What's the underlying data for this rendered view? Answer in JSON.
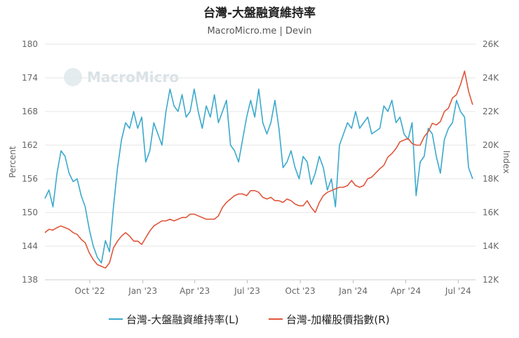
{
  "chart_data": {
    "type": "line",
    "title": "台灣-大盤融資維持率",
    "subtitle": "MacroMicro.me | Devin",
    "watermark": "MacroMicro",
    "ylabel_left": "Percent",
    "ylabel_right": "Index",
    "ylim_left": [
      138,
      180
    ],
    "ylim_right": [
      12000,
      26000
    ],
    "yticks_left": [
      138,
      144,
      150,
      156,
      162,
      168,
      174,
      180
    ],
    "yticks_right_labels": [
      "12K",
      "14K",
      "16K",
      "18K",
      "20K",
      "22K",
      "24K",
      "26K"
    ],
    "yticks_right_values": [
      12000,
      14000,
      16000,
      18000,
      20000,
      22000,
      24000,
      26000
    ],
    "x_tick_labels": [
      "Oct '22",
      "Jan '23",
      "Apr '23",
      "Jul '23",
      "Oct '23",
      "Jan '24",
      "Apr '24",
      "Jul '24"
    ],
    "x_tick_dates": [
      "2022-10-01",
      "2023-01-01",
      "2023-04-01",
      "2023-07-01",
      "2023-10-01",
      "2024-01-01",
      "2024-04-01",
      "2024-07-01"
    ],
    "x_range": [
      "2022-07-15",
      "2024-07-31"
    ],
    "grid": "horizontal",
    "legend_position": "bottom",
    "series": [
      {
        "name": "台灣-大盤融資維持率(L)",
        "axis": "left",
        "color": "#3ba9cc",
        "x": [
          "2022-07-15",
          "2022-07-22",
          "2022-07-29",
          "2022-08-05",
          "2022-08-12",
          "2022-08-19",
          "2022-08-26",
          "2022-09-02",
          "2022-09-09",
          "2022-09-16",
          "2022-09-23",
          "2022-09-30",
          "2022-10-07",
          "2022-10-14",
          "2022-10-21",
          "2022-10-28",
          "2022-11-04",
          "2022-11-11",
          "2022-11-18",
          "2022-11-25",
          "2022-12-02",
          "2022-12-09",
          "2022-12-16",
          "2022-12-23",
          "2022-12-30",
          "2023-01-06",
          "2023-01-13",
          "2023-01-20",
          "2023-02-03",
          "2023-02-10",
          "2023-02-17",
          "2023-02-24",
          "2023-03-03",
          "2023-03-10",
          "2023-03-17",
          "2023-03-24",
          "2023-03-31",
          "2023-04-07",
          "2023-04-14",
          "2023-04-21",
          "2023-04-28",
          "2023-05-05",
          "2023-05-12",
          "2023-05-19",
          "2023-05-26",
          "2023-06-02",
          "2023-06-09",
          "2023-06-16",
          "2023-06-23",
          "2023-06-30",
          "2023-07-07",
          "2023-07-14",
          "2023-07-21",
          "2023-07-28",
          "2023-08-04",
          "2023-08-11",
          "2023-08-18",
          "2023-08-25",
          "2023-09-01",
          "2023-09-08",
          "2023-09-15",
          "2023-09-22",
          "2023-09-29",
          "2023-10-06",
          "2023-10-13",
          "2023-10-20",
          "2023-10-27",
          "2023-11-03",
          "2023-11-10",
          "2023-11-17",
          "2023-11-24",
          "2023-12-01",
          "2023-12-08",
          "2023-12-15",
          "2023-12-22",
          "2023-12-29",
          "2024-01-05",
          "2024-01-12",
          "2024-01-19",
          "2024-01-26",
          "2024-02-02",
          "2024-02-16",
          "2024-02-23",
          "2024-03-01",
          "2024-03-08",
          "2024-03-15",
          "2024-03-22",
          "2024-03-29",
          "2024-04-05",
          "2024-04-12",
          "2024-04-19",
          "2024-04-26",
          "2024-05-03",
          "2024-05-10",
          "2024-05-17",
          "2024-05-24",
          "2024-05-31",
          "2024-06-07",
          "2024-06-14",
          "2024-06-21",
          "2024-06-28",
          "2024-07-05",
          "2024-07-12",
          "2024-07-19",
          "2024-07-26"
        ],
        "values": [
          152.5,
          154,
          151,
          157,
          161,
          160,
          157,
          155.5,
          156,
          153,
          151,
          147,
          144,
          142,
          141,
          145,
          143,
          151,
          158,
          163,
          166,
          165,
          168,
          165,
          167,
          159,
          161,
          166,
          162,
          168,
          172,
          169,
          168,
          171,
          167,
          168,
          172,
          168,
          165,
          169,
          167,
          171,
          166,
          168,
          170,
          162,
          161,
          159,
          163,
          167,
          170,
          167,
          172,
          166,
          164,
          166,
          170,
          165,
          158,
          159,
          161,
          158,
          156,
          160,
          159,
          155,
          157,
          160,
          158,
          154,
          156,
          151,
          162,
          164,
          166,
          165,
          168,
          165,
          166,
          167,
          164,
          165,
          169,
          168,
          170,
          166,
          167,
          164,
          163,
          166,
          153,
          159,
          160,
          165,
          164,
          160,
          157,
          163,
          165,
          166,
          170,
          168,
          167,
          158,
          156
        ]
      },
      {
        "name": "台灣-加權股價指數(R)",
        "axis": "right",
        "color": "#e0563b",
        "x": [
          "2022-07-15",
          "2022-07-22",
          "2022-07-29",
          "2022-08-05",
          "2022-08-12",
          "2022-08-19",
          "2022-08-26",
          "2022-09-02",
          "2022-09-09",
          "2022-09-16",
          "2022-09-23",
          "2022-09-30",
          "2022-10-07",
          "2022-10-14",
          "2022-10-21",
          "2022-10-28",
          "2022-11-04",
          "2022-11-11",
          "2022-11-18",
          "2022-11-25",
          "2022-12-02",
          "2022-12-09",
          "2022-12-16",
          "2022-12-23",
          "2022-12-30",
          "2023-01-06",
          "2023-01-13",
          "2023-01-20",
          "2023-02-03",
          "2023-02-10",
          "2023-02-17",
          "2023-02-24",
          "2023-03-03",
          "2023-03-10",
          "2023-03-17",
          "2023-03-24",
          "2023-03-31",
          "2023-04-07",
          "2023-04-14",
          "2023-04-21",
          "2023-04-28",
          "2023-05-05",
          "2023-05-12",
          "2023-05-19",
          "2023-05-26",
          "2023-06-02",
          "2023-06-09",
          "2023-06-16",
          "2023-06-23",
          "2023-06-30",
          "2023-07-07",
          "2023-07-14",
          "2023-07-21",
          "2023-07-28",
          "2023-08-04",
          "2023-08-11",
          "2023-08-18",
          "2023-08-25",
          "2023-09-01",
          "2023-09-08",
          "2023-09-15",
          "2023-09-22",
          "2023-09-29",
          "2023-10-06",
          "2023-10-13",
          "2023-10-20",
          "2023-10-27",
          "2023-11-03",
          "2023-11-10",
          "2023-11-17",
          "2023-11-24",
          "2023-12-01",
          "2023-12-08",
          "2023-12-15",
          "2023-12-22",
          "2023-12-29",
          "2024-01-05",
          "2024-01-12",
          "2024-01-19",
          "2024-01-26",
          "2024-02-02",
          "2024-02-16",
          "2024-02-23",
          "2024-03-01",
          "2024-03-08",
          "2024-03-15",
          "2024-03-22",
          "2024-03-29",
          "2024-04-05",
          "2024-04-12",
          "2024-04-19",
          "2024-04-26",
          "2024-05-03",
          "2024-05-10",
          "2024-05-17",
          "2024-05-24",
          "2024-05-31",
          "2024-06-07",
          "2024-06-14",
          "2024-06-21",
          "2024-06-28",
          "2024-07-05",
          "2024-07-12",
          "2024-07-19",
          "2024-07-26"
        ],
        "values": [
          14800,
          15000,
          14950,
          15100,
          15200,
          15100,
          15000,
          14800,
          14700,
          14400,
          14200,
          13600,
          13200,
          12900,
          12800,
          12700,
          13000,
          13900,
          14300,
          14600,
          14800,
          14600,
          14300,
          14300,
          14100,
          14500,
          14900,
          15200,
          15500,
          15500,
          15600,
          15500,
          15600,
          15700,
          15700,
          15900,
          15900,
          15800,
          15700,
          15600,
          15600,
          15600,
          15800,
          16300,
          16600,
          16800,
          17000,
          17100,
          17100,
          17000,
          17300,
          17300,
          17200,
          16900,
          16800,
          16900,
          16700,
          16700,
          16600,
          16800,
          16700,
          16500,
          16400,
          16400,
          16700,
          16300,
          16000,
          16600,
          17000,
          17200,
          17300,
          17400,
          17500,
          17500,
          17600,
          17900,
          17600,
          17500,
          17600,
          18000,
          18100,
          18600,
          18800,
          19300,
          19500,
          19800,
          20200,
          20300,
          20400,
          20100,
          20000,
          20000,
          20500,
          20800,
          21300,
          21200,
          21400,
          22000,
          22200,
          22800,
          23000,
          23600,
          24400,
          23200,
          22400
        ]
      }
    ]
  }
}
